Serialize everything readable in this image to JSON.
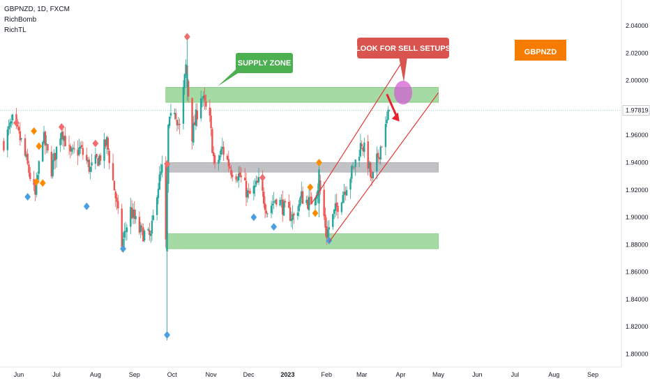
{
  "legend": {
    "symbol_line": "GBPNZD, 1D, FXCM",
    "indicator_1": "RichBomb",
    "indicator_2": "RichTL"
  },
  "price_badge": "1.97819",
  "annotations": {
    "supply_zone": "SUPPLY ZONE",
    "sell_setups": "LOOK FOR SELL SETUPS",
    "symbol_badge": "GBPNZD"
  },
  "colors": {
    "up_candle": "#26a69a",
    "down_candle": "#ef5350",
    "zone_green": "#8fd18f",
    "zone_gray": "#b2b2b8",
    "channel": "#e53935",
    "marker_red": "#ef6f6f",
    "marker_orange": "#ff8c00",
    "marker_blue": "#4a9fe0",
    "supply_label": "#4caf50",
    "sell_label": "#d9534f",
    "symbol_badge_bg": "#f57c00",
    "highlight_circle": "#d25fd2"
  },
  "chart_data": {
    "type": "candlestick",
    "y_axis": {
      "ticks": [
        "2.04000",
        "2.02000",
        "2.00000",
        "1.98000",
        "1.96000",
        "1.94000",
        "1.92000",
        "1.90000",
        "1.88000",
        "1.86000",
        "1.84000",
        "1.82000",
        "1.80000"
      ],
      "range": [
        1.795,
        2.045
      ]
    },
    "x_axis": {
      "labels": [
        "Jun",
        "Jul",
        "Aug",
        "Sep",
        "Oct",
        "Nov",
        "Dec",
        "2023",
        "Feb",
        "Mar",
        "Apr",
        "May",
        "Jun",
        "Jul",
        "Aug",
        "Sep"
      ]
    },
    "last_price": 1.97819,
    "anchors": [
      [
        "2022-05-20",
        1.955
      ],
      [
        "2022-05-27",
        1.97
      ],
      [
        "2022-06-03",
        1.955
      ],
      [
        "2022-06-10",
        1.93
      ],
      [
        "2022-06-14",
        1.915
      ],
      [
        "2022-06-20",
        1.96
      ],
      [
        "2022-06-27",
        1.935
      ],
      [
        "2022-07-05",
        1.965
      ],
      [
        "2022-07-12",
        1.945
      ],
      [
        "2022-07-20",
        1.95
      ],
      [
        "2022-07-28",
        1.935
      ],
      [
        "2022-08-05",
        1.945
      ],
      [
        "2022-08-10",
        1.955
      ],
      [
        "2022-08-17",
        1.915
      ],
      [
        "2022-08-22",
        1.88
      ],
      [
        "2022-08-29",
        1.905
      ],
      [
        "2022-09-05",
        1.89
      ],
      [
        "2022-09-14",
        1.885
      ],
      [
        "2022-09-19",
        1.92
      ],
      [
        "2022-09-23",
        1.935
      ],
      [
        "2022-09-26",
        1.88
      ],
      [
        "2022-09-28",
        1.965
      ],
      [
        "2022-10-03",
        1.98
      ],
      [
        "2022-10-07",
        1.965
      ],
      [
        "2022-10-12",
        2.01
      ],
      [
        "2022-10-17",
        1.96
      ],
      [
        "2022-10-24",
        1.99
      ],
      [
        "2022-10-31",
        1.97
      ],
      [
        "2022-11-04",
        1.935
      ],
      [
        "2022-11-10",
        1.95
      ],
      [
        "2022-11-17",
        1.935
      ],
      [
        "2022-11-24",
        1.93
      ],
      [
        "2022-12-01",
        1.915
      ],
      [
        "2022-12-09",
        1.925
      ],
      [
        "2022-12-16",
        1.905
      ],
      [
        "2022-12-23",
        1.915
      ],
      [
        "2022-12-30",
        1.905
      ],
      [
        "2023-01-06",
        1.9
      ],
      [
        "2023-01-12",
        1.915
      ],
      [
        "2023-01-19",
        1.91
      ],
      [
        "2023-01-26",
        1.925
      ],
      [
        "2023-02-01",
        1.888
      ],
      [
        "2023-02-08",
        1.905
      ],
      [
        "2023-02-15",
        1.92
      ],
      [
        "2023-02-22",
        1.935
      ],
      [
        "2023-03-01",
        1.955
      ],
      [
        "2023-03-06",
        1.94
      ],
      [
        "2023-03-09",
        1.925
      ],
      [
        "2023-03-14",
        1.945
      ],
      [
        "2023-03-20",
        1.965
      ],
      [
        "2023-03-23",
        1.978
      ]
    ],
    "zones": [
      {
        "kind": "supply",
        "y_low": 1.984,
        "y_high": 1.995,
        "from": "2022-09-26",
        "to": "2023-05-01"
      },
      {
        "kind": "gray",
        "y_low": 1.933,
        "y_high": 1.94,
        "from": "2022-09-26",
        "to": "2023-05-01"
      },
      {
        "kind": "demand",
        "y_low": 1.877,
        "y_high": 1.888,
        "from": "2022-09-26",
        "to": "2023-05-01"
      }
    ],
    "channel_lines": [
      {
        "from": [
          "2023-01-20",
          1.91
        ],
        "to": [
          "2023-04-01",
          2.012
        ]
      },
      {
        "from": [
          "2023-02-03",
          1.882
        ],
        "to": [
          "2023-05-01",
          1.991
        ]
      }
    ],
    "arrow": {
      "from": [
        "2023-03-21",
        1.99
      ],
      "to": [
        "2023-03-31",
        1.97
      ]
    },
    "markers": [
      {
        "date": "2022-05-30",
        "y": 1.969,
        "color": "red"
      },
      {
        "date": "2022-06-08",
        "y": 1.915,
        "color": "blue"
      },
      {
        "date": "2022-06-13",
        "y": 1.963,
        "color": "orange"
      },
      {
        "date": "2022-06-15",
        "y": 1.926,
        "color": "orange"
      },
      {
        "date": "2022-06-17",
        "y": 1.952,
        "color": "orange"
      },
      {
        "date": "2022-06-20",
        "y": 1.925,
        "color": "orange"
      },
      {
        "date": "2022-07-05",
        "y": 1.966,
        "color": "red"
      },
      {
        "date": "2022-07-25",
        "y": 1.908,
        "color": "blue"
      },
      {
        "date": "2022-08-01",
        "y": 1.954,
        "color": "red"
      },
      {
        "date": "2022-08-23",
        "y": 1.877,
        "color": "blue"
      },
      {
        "date": "2022-09-27",
        "y": 1.939,
        "color": "red"
      },
      {
        "date": "2022-09-27",
        "y": 1.814,
        "color": "blue"
      },
      {
        "date": "2022-10-13",
        "y": 2.032,
        "color": "red"
      },
      {
        "date": "2022-12-05",
        "y": 1.9,
        "color": "blue"
      },
      {
        "date": "2022-12-12",
        "y": 1.929,
        "color": "red"
      },
      {
        "date": "2022-12-21",
        "y": 1.893,
        "color": "blue"
      },
      {
        "date": "2023-01-19",
        "y": 1.922,
        "color": "orange"
      },
      {
        "date": "2023-01-23",
        "y": 1.903,
        "color": "orange"
      },
      {
        "date": "2023-01-26",
        "y": 1.94,
        "color": "orange"
      },
      {
        "date": "2023-02-03",
        "y": 1.883,
        "color": "blue"
      }
    ]
  }
}
